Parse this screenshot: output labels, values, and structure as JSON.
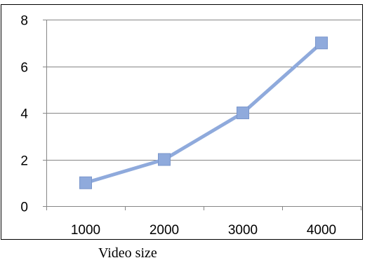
{
  "chart_data": {
    "type": "line",
    "title": "",
    "xlabel": "Video size",
    "ylabel": "",
    "categories": [
      "1000",
      "2000",
      "3000",
      "4000"
    ],
    "series": [
      {
        "values": [
          1,
          2,
          4,
          7
        ],
        "marker": "square"
      }
    ],
    "ylim": [
      0,
      8
    ],
    "yticks": [
      0,
      2,
      4,
      6,
      8
    ],
    "grid": "horizontal",
    "legend": "none",
    "colors": {
      "line": "#8faadc",
      "marker": "#8faadc",
      "marker_stroke": "#7a96cb",
      "grid": "#868686",
      "axis": "#868686",
      "frame": "#000000"
    }
  }
}
